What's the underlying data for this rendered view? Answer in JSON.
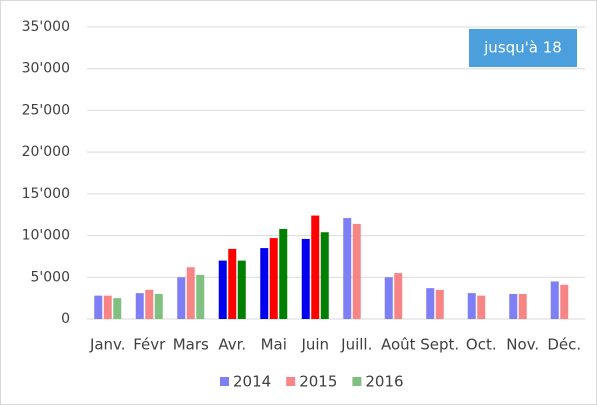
{
  "chart_data": {
    "type": "bar",
    "annotation": "jusqu'à 18",
    "categories": [
      "Janv.",
      "Févr",
      "Mars",
      "Avr.",
      "Mai",
      "Juin",
      "Juill.",
      "Août",
      "Sept.",
      "Oct.",
      "Nov.",
      "Déc."
    ],
    "series": [
      {
        "name": "2014",
        "color": "#7f7ff5",
        "colors": [
          "#7f7ff5",
          "#7f7ff5",
          "#7f7ff5",
          "#0000ee",
          "#0000ee",
          "#0000ee",
          "#7f7ff5",
          "#7f7ff5",
          "#7f7ff5",
          "#7f7ff5",
          "#7f7ff5",
          "#7f7ff5"
        ],
        "values": [
          2800,
          3100,
          5000,
          7000,
          8500,
          9600,
          12100,
          5000,
          3700,
          3100,
          3000,
          4500
        ]
      },
      {
        "name": "2015",
        "color": "#f78585",
        "colors": [
          "#f78585",
          "#f78585",
          "#f78585",
          "#ff0000",
          "#ff0000",
          "#ff0000",
          "#f78585",
          "#f78585",
          "#f78585",
          "#f78585",
          "#f78585",
          "#f78585"
        ],
        "values": [
          2800,
          3500,
          6200,
          8400,
          9700,
          12400,
          11400,
          5500,
          3500,
          2800,
          3000,
          4100
        ]
      },
      {
        "name": "2016",
        "color": "#80c080",
        "colors": [
          "#80c080",
          "#80c080",
          "#80c080",
          "#008000",
          "#008000",
          "#008000",
          "#80c080",
          "#80c080",
          "#80c080",
          "#80c080",
          "#80c080",
          "#80c080"
        ],
        "values": [
          2500,
          3000,
          5300,
          7000,
          10800,
          10400,
          null,
          null,
          null,
          null,
          null,
          null
        ]
      }
    ],
    "ylim": [
      0,
      35000
    ],
    "yticks": [
      0,
      {
        "value": 5000,
        "label": "5'000"
      },
      {
        "value": 10000,
        "label": "10'000"
      },
      {
        "value": 15000,
        "label": "15'000"
      },
      {
        "value": 20000,
        "label": "20'000"
      },
      {
        "value": 25000,
        "label": "25'000"
      },
      {
        "value": 30000,
        "label": "30'000"
      },
      {
        "value": 35000,
        "label": "35'000"
      }
    ],
    "grid": true,
    "legend": "bottom"
  }
}
